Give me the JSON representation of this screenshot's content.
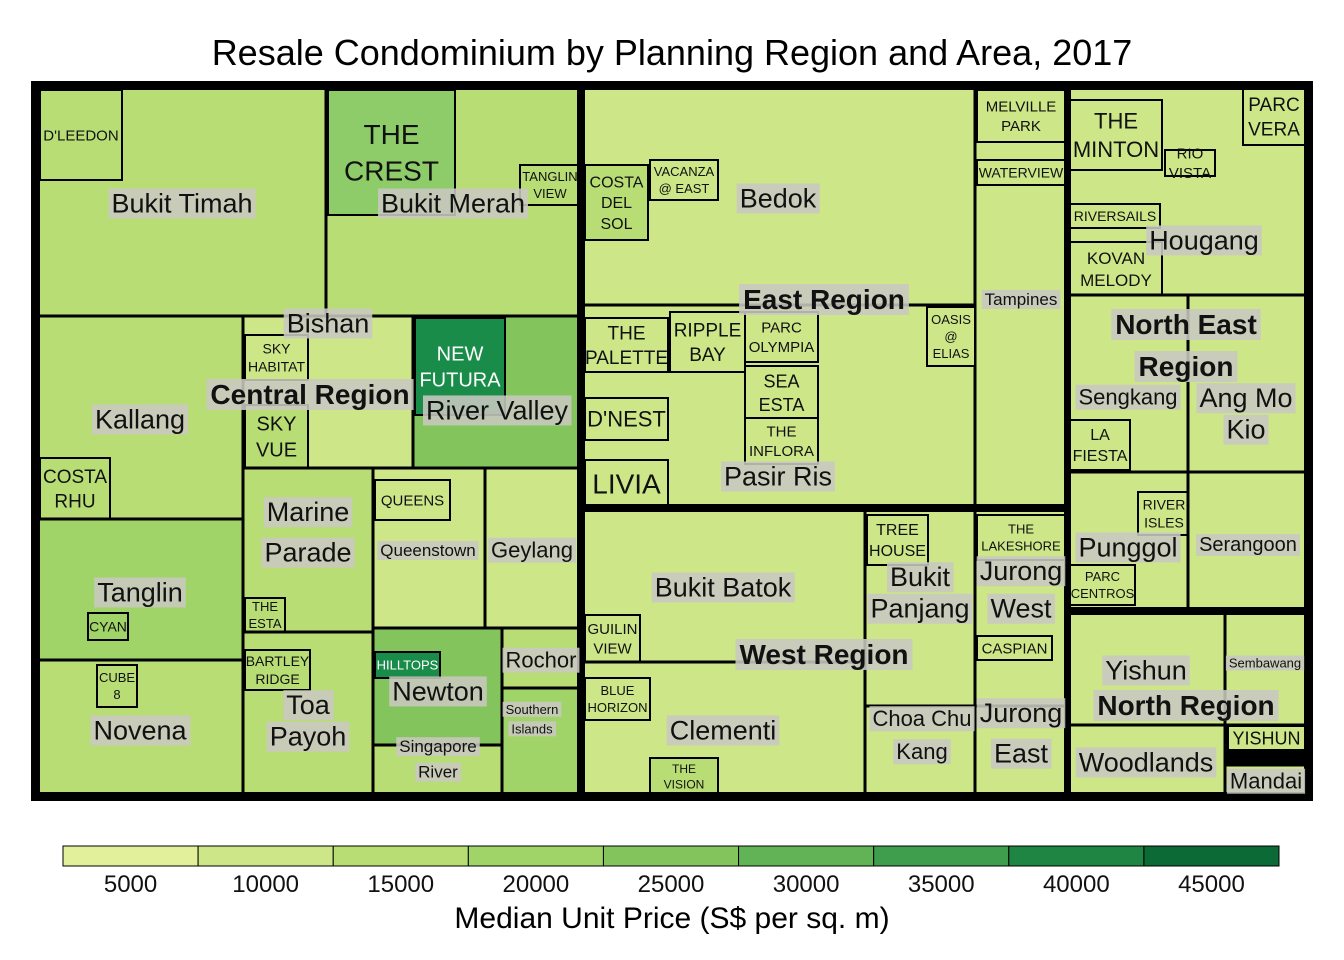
{
  "chart_data": {
    "type": "treemap",
    "title": "Resale Condominium by Planning Region and Area, 2017",
    "legend": {
      "title": "Median Unit Price (S$ per sq. m)",
      "ticks": [
        5000,
        10000,
        15000,
        20000,
        25000,
        30000,
        35000,
        40000,
        45000
      ],
      "range": [
        2500,
        47500
      ],
      "bins": [
        "#e3f09b",
        "#cde688",
        "#b8dd75",
        "#a1d468",
        "#84c45c",
        "#61b356",
        "#3f9d4e",
        "#1e8542",
        "#0b6a35"
      ],
      "placement": "bottom"
    },
    "regions": [
      {
        "name": "Central Region",
        "areas": [
          {
            "name": "Bukit Timah",
            "price": 14000,
            "projects": [
              "D'LEEDON"
            ]
          },
          {
            "name": "Bukit Merah",
            "price": 15000,
            "projects": [
              "THE CREST",
              "TANGLIN VIEW"
            ]
          },
          {
            "name": "Kallang",
            "price": 13000,
            "projects": [
              "COSTA RHU"
            ]
          },
          {
            "name": "Bishan",
            "price": 12000,
            "projects": [
              "SKY HABITAT",
              "SKY VUE"
            ]
          },
          {
            "name": "River Valley",
            "price": 25000,
            "projects": [
              "NEW FUTURA"
            ]
          },
          {
            "name": "Tanglin",
            "price": 20000,
            "projects": [
              "CYAN"
            ]
          },
          {
            "name": "Novena",
            "price": 16000,
            "projects": [
              "CUBE 8"
            ]
          },
          {
            "name": "Marine Parade",
            "price": 14000,
            "projects": [
              "THE ESTA"
            ]
          },
          {
            "name": "Queenstown",
            "price": 12000,
            "projects": [
              "QUEENS"
            ]
          },
          {
            "name": "Geylang",
            "price": 12000,
            "projects": []
          },
          {
            "name": "Toa Payoh",
            "price": 13000,
            "projects": [
              "BARTLEY RIDGE"
            ]
          },
          {
            "name": "Newton",
            "price": 24000,
            "projects": [
              "HILLTOPS"
            ]
          },
          {
            "name": "Singapore River",
            "price": 15000,
            "projects": []
          },
          {
            "name": "Rochor",
            "price": 15000,
            "projects": []
          },
          {
            "name": "Southern Islands",
            "price": 19000,
            "projects": []
          }
        ]
      },
      {
        "name": "East Region",
        "areas": [
          {
            "name": "Bedok",
            "price": 11000,
            "projects": [
              "VACANZA @ EAST",
              "COSTA DEL SOL"
            ]
          },
          {
            "name": "Tampines",
            "price": 10000,
            "projects": [
              "MELVILLE PARK",
              "WATERVIEW"
            ]
          },
          {
            "name": "Pasir Ris",
            "price": 10000,
            "projects": [
              "THE PALETTE",
              "RIPPLE BAY",
              "PARC OLYMPIA",
              "SEA ESTA",
              "THE INFLORA",
              "OASIS @ ELIAS",
              "D'NEST",
              "LIVIA"
            ]
          }
        ]
      },
      {
        "name": "West Region",
        "areas": [
          {
            "name": "Bukit Batok",
            "price": 10000,
            "projects": [
              "GUILIN VIEW"
            ]
          },
          {
            "name": "Clementi",
            "price": 11000,
            "projects": [
              "BLUE HORIZON",
              "THE VISION"
            ]
          },
          {
            "name": "Bukit Panjang",
            "price": 10000,
            "projects": [
              "TREE HOUSE"
            ]
          },
          {
            "name": "Choa Chu Kang",
            "price": 8000,
            "projects": []
          },
          {
            "name": "Jurong West",
            "price": 9000,
            "projects": [
              "THE LAKESHORE",
              "CASPIAN"
            ]
          },
          {
            "name": "Jurong East",
            "price": 9000,
            "projects": []
          }
        ]
      },
      {
        "name": "North East Region",
        "areas": [
          {
            "name": "Hougang",
            "price": 10000,
            "projects": [
              "THE MINTON",
              "RIO VISTA",
              "RIVERSAILS",
              "KOVAN MELODY",
              "PARC VERA"
            ]
          },
          {
            "name": "Sengkang",
            "price": 10000,
            "projects": [
              "LA FIESTA"
            ]
          },
          {
            "name": "Ang Mo Kio",
            "price": 11000,
            "projects": []
          },
          {
            "name": "Punggol",
            "price": 10000,
            "projects": [
              "RIVER ISLES",
              "PARC CENTROS"
            ]
          },
          {
            "name": "Serangoon",
            "price": 11000,
            "projects": []
          }
        ]
      },
      {
        "name": "North Region",
        "areas": [
          {
            "name": "Yishun",
            "price": 9000,
            "projects": [
              "YISHUN"
            ]
          },
          {
            "name": "Sembawang",
            "price": 8000,
            "projects": []
          },
          {
            "name": "Woodlands",
            "price": 8000,
            "projects": []
          },
          {
            "name": "Mandai",
            "price": 9000,
            "projects": []
          }
        ]
      }
    ]
  }
}
